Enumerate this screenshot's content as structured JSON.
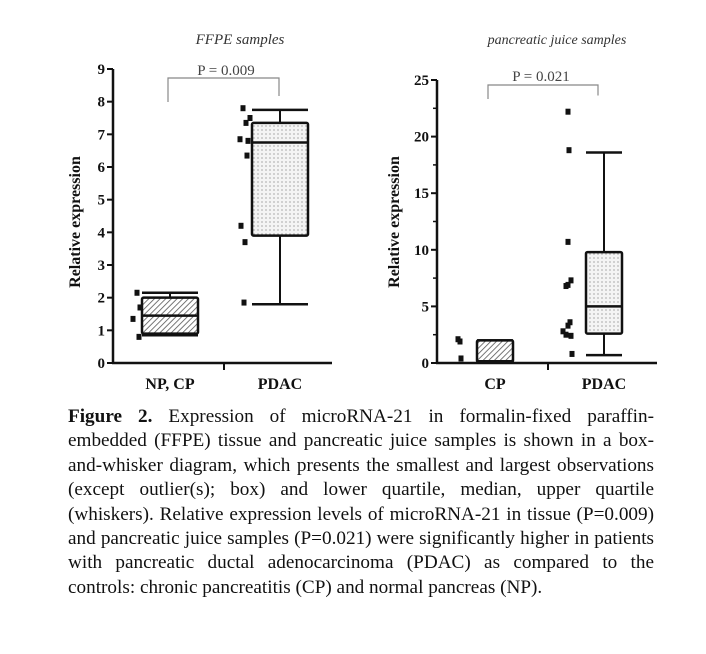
{
  "chart_data": [
    {
      "type": "box",
      "title": "FFPE samples",
      "xlabel": "",
      "ylabel": "Relative expression",
      "ylim": [
        0,
        9
      ],
      "yticks": [
        0,
        1,
        2,
        3,
        4,
        5,
        6,
        7,
        8,
        9
      ],
      "ytick_labels": [
        "0",
        "1",
        "2",
        "3",
        "4",
        "5",
        "6",
        "7",
        "8",
        "9"
      ],
      "categories": [
        "NP, CP",
        "PDAC"
      ],
      "grid": false,
      "annotation": "P = 0.009",
      "boxes": [
        {
          "name": "NP, CP",
          "whisker_low": 0.85,
          "q1": 0.9,
          "median": 1.45,
          "q3": 2.0,
          "whisker_high": 2.15,
          "fill": "hatch"
        },
        {
          "name": "PDAC",
          "whisker_low": 1.8,
          "q1": 3.9,
          "median": 6.75,
          "q3": 7.35,
          "whisker_high": 7.75,
          "fill": "dots"
        }
      ],
      "points": [
        {
          "category": "NP, CP",
          "values": [
            2.15,
            1.7,
            1.35,
            0.8
          ]
        },
        {
          "category": "PDAC",
          "values": [
            7.8,
            7.5,
            7.35,
            6.85,
            6.8,
            6.35,
            4.2,
            3.7,
            1.85
          ]
        }
      ]
    },
    {
      "type": "box",
      "title": "pancreatic juice samples",
      "xlabel": "",
      "ylabel": "Relative expression",
      "ylim": [
        0,
        25
      ],
      "yticks": [
        0,
        5,
        10,
        15,
        20,
        25
      ],
      "ytick_labels": [
        "0",
        "5",
        "10",
        "15",
        "20",
        "25"
      ],
      "minor_ticks": [
        2.5,
        7.5,
        12.5,
        17.5,
        22.5
      ],
      "categories": [
        "CP",
        "PDAC"
      ],
      "grid": false,
      "annotation": "P = 0.021",
      "boxes": [
        {
          "name": "CP",
          "whisker_low": 0.1,
          "q1": 0.1,
          "median": 0.15,
          "q3": 2.0,
          "whisker_high": 2.0,
          "fill": "hatch"
        },
        {
          "name": "PDAC",
          "whisker_low": 0.7,
          "q1": 2.6,
          "median": 5.0,
          "q3": 9.8,
          "whisker_high": 18.6,
          "fill": "dots"
        }
      ],
      "points": [
        {
          "category": "CP",
          "values": [
            2.1,
            1.9,
            0.4
          ]
        },
        {
          "category": "PDAC",
          "values": [
            22.2,
            18.8,
            10.7,
            7.3,
            6.9,
            6.8,
            3.6,
            3.3,
            2.8,
            2.5,
            2.4,
            0.8
          ]
        }
      ]
    }
  ],
  "caption": {
    "label": "Figure 2.",
    "text": "Expression of microRNA-21 in formalin-fixed paraffin-embedded (FFPE) tissue and pancreatic juice samples is shown in a box-and-whisker diagram, which presents the smallest and largest observations (except outlier(s); box) and lower quartile, median, upper quartile (whiskers). Relative expression levels of microRNA-21 in tissue (P=0.009) and pancreatic juice samples (P=0.021) were significantly higher in patients with pancreatic ductal adenocarcinoma (PDAC) as compared to the controls: chronic pancreatitis (CP) and normal pancreas (NP)."
  },
  "colors": {
    "ink": "#111111",
    "bracket": "#888888",
    "fill": "#dddddd"
  }
}
